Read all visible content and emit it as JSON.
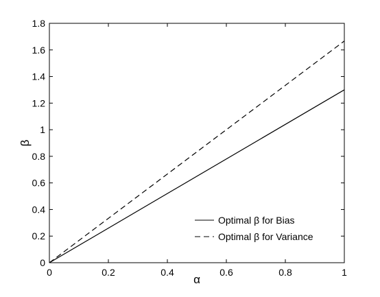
{
  "chart_data": {
    "type": "line",
    "xlabel": "α",
    "ylabel": "β",
    "xlim": [
      0,
      1
    ],
    "ylim": [
      0,
      1.8
    ],
    "xticks": [
      0,
      0.2,
      0.4,
      0.6,
      0.8,
      1
    ],
    "xtick_labels": [
      "0",
      "0.2",
      "0.4",
      "0.6",
      "0.8",
      "1"
    ],
    "yticks": [
      0,
      0.2,
      0.4,
      0.6,
      0.8,
      1,
      1.2,
      1.4,
      1.6,
      1.8
    ],
    "ytick_labels": [
      "0",
      "0.2",
      "0.4",
      "0.6",
      "0.8",
      "1",
      "1.2",
      "1.4",
      "1.6",
      "1.8"
    ],
    "grid": false,
    "legend_position": "bottom-right",
    "series": [
      {
        "name": "Optimal β for Bias",
        "style": "solid",
        "color": "#000000",
        "x": [
          0,
          1
        ],
        "y": [
          0,
          1.3
        ]
      },
      {
        "name": "Optimal β for Variance",
        "style": "dashed",
        "color": "#000000",
        "x": [
          0,
          1
        ],
        "y": [
          0,
          1.667
        ]
      }
    ]
  }
}
